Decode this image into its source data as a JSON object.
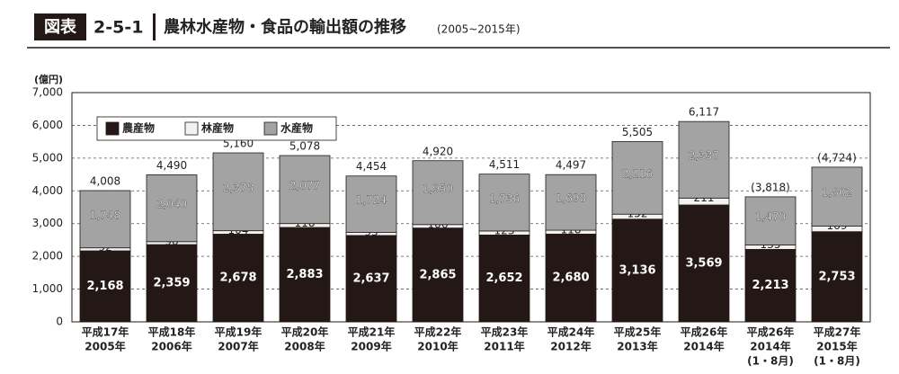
{
  "header": {
    "badge": "図表",
    "number": "2-5-1",
    "title": "農林水産物・食品の輸出額の推移",
    "subtitle": "(2005~2015年)"
  },
  "chart_data": {
    "type": "stacked_bar",
    "y_axis_label": "(億円)",
    "categories": [
      [
        "平成17年",
        "2005年"
      ],
      [
        "平成18年",
        "2006年"
      ],
      [
        "平成19年",
        "2007年"
      ],
      [
        "平成20年",
        "2008年"
      ],
      [
        "平成21年",
        "2009年"
      ],
      [
        "平成22年",
        "2010年"
      ],
      [
        "平成23年",
        "2011年"
      ],
      [
        "平成24年",
        "2012年"
      ],
      [
        "平成25年",
        "2013年"
      ],
      [
        "平成26年",
        "2014年"
      ],
      [
        "平成26年",
        "2014年",
        "(1・8月)"
      ],
      [
        "平成27年",
        "2015年",
        "(1・8月)"
      ]
    ],
    "series": [
      {
        "name": "農産物",
        "color": "#231815",
        "values": [
          2168,
          2359,
          2678,
          2883,
          2637,
          2865,
          2652,
          2680,
          3136,
          3569,
          2213,
          2753
        ],
        "value_labels": [
          "2,168",
          "2,359",
          "2,678",
          "2,883",
          "2,637",
          "2,865",
          "2,652",
          "2,680",
          "3,136",
          "3,569",
          "2,213",
          "2,753"
        ]
      },
      {
        "name": "林産物",
        "color": "#f2f2f2",
        "values": [
          92,
          90,
          104,
          118,
          93,
          106,
          123,
          118,
          152,
          211,
          135,
          169
        ]
      },
      {
        "name": "水産物",
        "color": "#a3a3a3",
        "values": [
          1748,
          2040,
          2378,
          2077,
          1724,
          1950,
          1736,
          1698,
          2216,
          2337,
          1470,
          1802
        ],
        "value_labels": [
          "1,748",
          "2,040",
          "2,378",
          "2,077",
          "1,724",
          "1,950",
          "1,736",
          "1,698",
          "2,216",
          "2,337",
          "1,470",
          "1,802"
        ]
      }
    ],
    "totals": [
      {
        "value": 4008,
        "label": "4,008"
      },
      {
        "value": 4490,
        "label": "4,490"
      },
      {
        "value": 5160,
        "label": "5,160"
      },
      {
        "value": 5078,
        "label": "5,078"
      },
      {
        "value": 4454,
        "label": "4,454"
      },
      {
        "value": 4920,
        "label": "4,920"
      },
      {
        "value": 4511,
        "label": "4,511"
      },
      {
        "value": 4497,
        "label": "4,497"
      },
      {
        "value": 5505,
        "label": "5,505"
      },
      {
        "value": 6117,
        "label": "6,117"
      },
      {
        "value": 3818,
        "label": "(3,818)"
      },
      {
        "value": 4724,
        "label": "(4,724)"
      }
    ],
    "ylim": [
      0,
      7000
    ],
    "yticks": [
      0,
      {
        "value": 1000,
        "label": "1,000"
      },
      {
        "value": 2000,
        "label": "2,000"
      },
      {
        "value": 3000,
        "label": "3,000"
      },
      {
        "value": 4000,
        "label": "4,000"
      },
      {
        "value": 5000,
        "label": "5,000"
      },
      {
        "value": 6000,
        "label": "6,000"
      },
      {
        "value": 7000,
        "label": "7,000"
      }
    ],
    "grid": true,
    "legend": "upper-left"
  }
}
